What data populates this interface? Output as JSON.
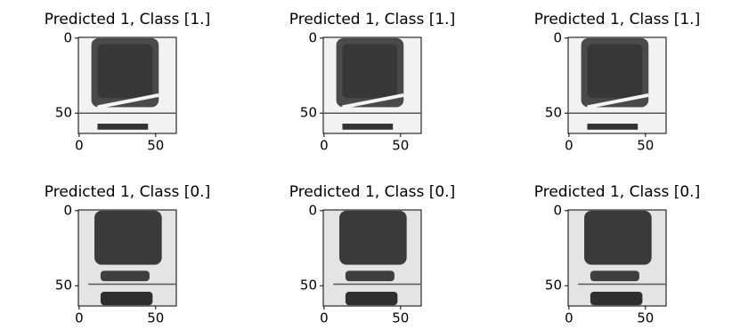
{
  "chart_data": [
    {
      "type": "image",
      "title": "Predicted 1, Class [1.]",
      "xlim": [
        -0.5,
        63.5
      ],
      "ylim": [
        63.5,
        -0.5
      ],
      "xticks": [
        0,
        50
      ],
      "yticks": [
        0,
        50
      ]
    },
    {
      "type": "image",
      "title": "Predicted 1, Class [1.]",
      "xlim": [
        -0.5,
        63.5
      ],
      "ylim": [
        63.5,
        -0.5
      ],
      "xticks": [
        0,
        50
      ],
      "yticks": [
        0,
        50
      ]
    },
    {
      "type": "image",
      "title": "Predicted 1, Class [1.]",
      "xlim": [
        -0.5,
        63.5
      ],
      "ylim": [
        63.5,
        -0.5
      ],
      "xticks": [
        0,
        50
      ],
      "yticks": [
        0,
        50
      ]
    },
    {
      "type": "image",
      "title": "Predicted 1, Class [0.]",
      "xlim": [
        -0.5,
        63.5
      ],
      "ylim": [
        63.5,
        -0.5
      ],
      "xticks": [
        0,
        50
      ],
      "yticks": [
        0,
        50
      ]
    },
    {
      "type": "image",
      "title": "Predicted 1, Class [0.]",
      "xlim": [
        -0.5,
        63.5
      ],
      "ylim": [
        63.5,
        -0.5
      ],
      "xticks": [
        0,
        50
      ],
      "yticks": [
        0,
        50
      ]
    },
    {
      "type": "image",
      "title": "Predicted 1, Class [0.]",
      "xlim": [
        -0.5,
        63.5
      ],
      "ylim": [
        63.5,
        -0.5
      ],
      "xticks": [
        0,
        50
      ],
      "yticks": [
        0,
        50
      ]
    }
  ]
}
